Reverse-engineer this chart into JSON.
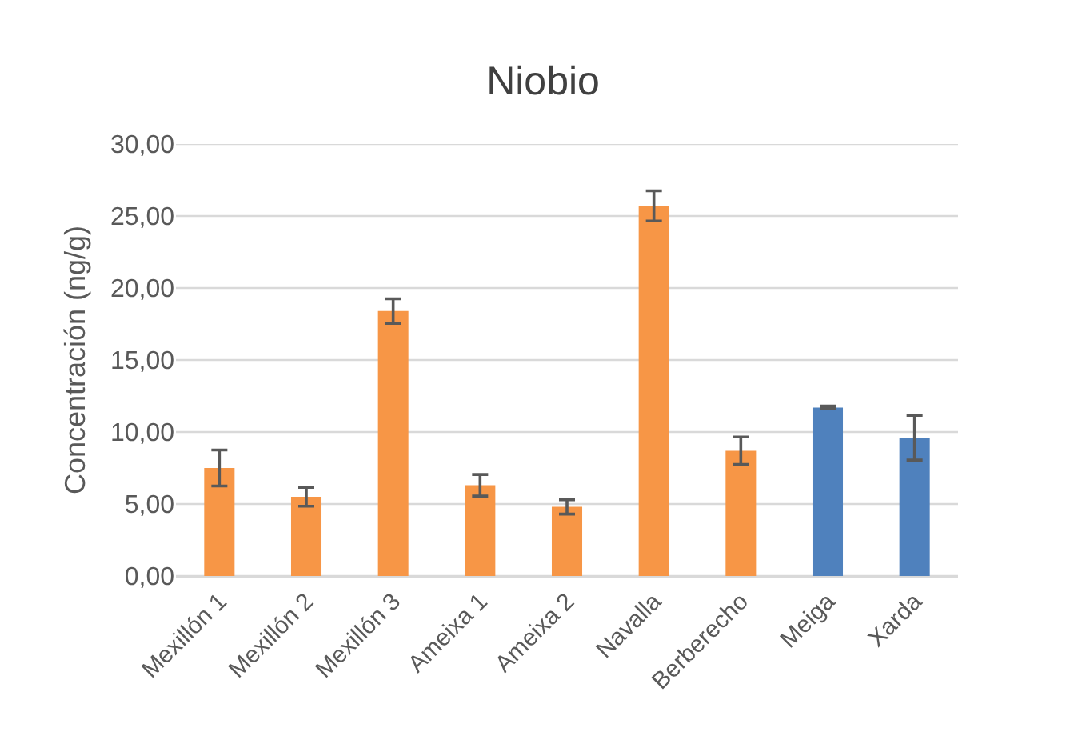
{
  "chart_data": {
    "type": "bar",
    "title": "Niobio",
    "ylabel": "Concentración (ng/g)",
    "categories": [
      "Mexillón 1",
      "Mexillón 2",
      "Mexillón 3",
      "Ameixa 1",
      "Ameixa 2",
      "Navalla",
      "Berberecho",
      "Meiga",
      "Xarda"
    ],
    "values": [
      7.5,
      5.5,
      18.4,
      6.3,
      4.8,
      25.7,
      8.7,
      11.7,
      9.6
    ],
    "colors": [
      "#f79646",
      "#f79646",
      "#f79646",
      "#f79646",
      "#f79646",
      "#f79646",
      "#f79646",
      "#4f81bd",
      "#4f81bd"
    ],
    "errors": [
      1.25,
      0.65,
      0.85,
      0.75,
      0.5,
      1.05,
      0.95,
      0.1,
      1.55
    ],
    "ylim": [
      0,
      30
    ],
    "yticks": [
      {
        "value": 0,
        "label": "0,00"
      },
      {
        "value": 5,
        "label": "5,00"
      },
      {
        "value": 10,
        "label": "10,00"
      },
      {
        "value": 15,
        "label": "15,00"
      },
      {
        "value": 20,
        "label": "20,00"
      },
      {
        "value": 25,
        "label": "25,00"
      },
      {
        "value": 30,
        "label": "30,00"
      }
    ],
    "grid": "y"
  }
}
